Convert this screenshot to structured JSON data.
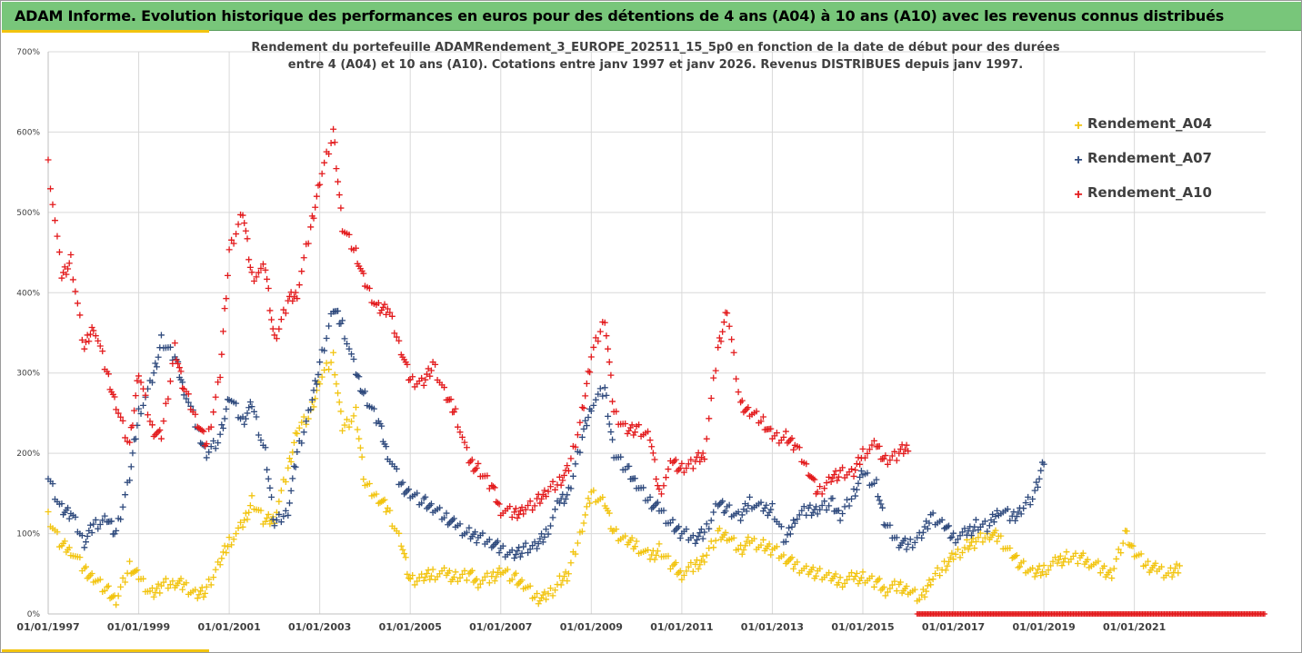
{
  "header": {
    "title": "ADAM Informe. Evolution historique des performances en euros pour des détentions de 4 ans (A04) à 10 ans (A10) avec les revenus connus distribués"
  },
  "colors": {
    "header_bg": "#78c67a",
    "accent": "#f2c40f",
    "a04": "#f2c40f",
    "a07": "#2f4a7d",
    "a10": "#e31a1c",
    "grid": "#d9d9d9"
  },
  "chart_data": {
    "type": "scatter",
    "subtitle_lines": [
      "Rendement du portefeuille ADAMRendement_3_EUROPE_202511_15_5p0  en fonction de la date de début pour des durées",
      "entre 4 (A04) et 10 ans (A10). Cotations entre janv 1997 et janv 2026. Revenus DISTRIBUES depuis janv 1997."
    ],
    "ylim": [
      0,
      700
    ],
    "y_ticks": [
      "0%",
      "100%",
      "200%",
      "300%",
      "400%",
      "500%",
      "600%",
      "700%"
    ],
    "x_range": [
      1997.0,
      2023.9
    ],
    "x_tick_labels": [
      "01/01/1997",
      "01/01/1999",
      "01/01/2001",
      "01/01/2003",
      "01/01/2005",
      "01/01/2007",
      "01/01/2009",
      "01/01/2011",
      "01/01/2013",
      "01/01/2015",
      "01/01/2017",
      "01/01/2019",
      "01/01/2021"
    ],
    "x_tick_years": [
      1997,
      1999,
      2001,
      2003,
      2005,
      2007,
      2009,
      2011,
      2013,
      2015,
      2017,
      2019,
      2021
    ],
    "legend_position": "top-right",
    "series": [
      {
        "name": "Rendement_A04",
        "color": "#f2c40f",
        "x": [
          1997.0,
          1997.3,
          1997.5,
          1997.8,
          1998.0,
          1998.3,
          1998.5,
          1998.8,
          1999.0,
          1999.3,
          1999.5,
          1999.8,
          2000.0,
          2000.3,
          2000.5,
          2000.8,
          2001.0,
          2001.3,
          2001.5,
          2001.8,
          2002.0,
          2002.3,
          2002.5,
          2002.8,
          2003.0,
          2003.3,
          2003.5,
          2003.8,
          2004.0,
          2004.3,
          2004.5,
          2004.8,
          2005.0,
          2005.3,
          2005.5,
          2005.8,
          2006.0,
          2006.3,
          2006.5,
          2006.8,
          2007.0,
          2007.3,
          2007.5,
          2007.8,
          2008.0,
          2008.3,
          2008.5,
          2008.8,
          2009.0,
          2009.3,
          2009.5,
          2009.8,
          2010.0,
          2010.3,
          2010.5,
          2010.8,
          2011.0,
          2011.3,
          2011.5,
          2011.8,
          2012.0,
          2012.3,
          2012.5,
          2012.8,
          2013.0,
          2013.3,
          2013.5,
          2013.8,
          2014.0,
          2014.3,
          2014.5,
          2014.8,
          2015.0,
          2015.3,
          2015.5,
          2015.8,
          2016.0,
          2016.3,
          2016.5,
          2016.8,
          2017.0,
          2017.3,
          2017.5,
          2017.8,
          2018.0,
          2018.3,
          2018.5,
          2018.8,
          2019.0,
          2019.3,
          2019.5,
          2019.8,
          2020.0,
          2020.3,
          2020.5,
          2020.8,
          2021.0,
          2021.3,
          2021.5,
          2021.8,
          2022.0
        ],
        "values": [
          120,
          85,
          80,
          55,
          45,
          30,
          15,
          60,
          45,
          25,
          35,
          40,
          35,
          25,
          30,
          65,
          90,
          110,
          140,
          115,
          120,
          180,
          230,
          250,
          290,
          320,
          230,
          250,
          160,
          145,
          130,
          90,
          40,
          45,
          50,
          50,
          45,
          50,
          40,
          45,
          55,
          45,
          35,
          20,
          20,
          40,
          50,
          110,
          150,
          140,
          100,
          90,
          85,
          70,
          80,
          60,
          50,
          60,
          70,
          100,
          95,
          80,
          90,
          85,
          80,
          70,
          60,
          55,
          50,
          45,
          40,
          45,
          45,
          40,
          30,
          35,
          30,
          20,
          40,
          60,
          70,
          85,
          90,
          100,
          95,
          75,
          60,
          50,
          55,
          65,
          70,
          70,
          65,
          55,
          50,
          100,
          75,
          60,
          55,
          50,
          60
        ]
      },
      {
        "name": "Rendement_A07",
        "color": "#2f4a7d",
        "x": [
          1997.0,
          1997.3,
          1997.5,
          1997.8,
          1998.0,
          1998.3,
          1998.5,
          1998.8,
          1999.0,
          1999.3,
          1999.5,
          1999.8,
          2000.0,
          2000.3,
          2000.5,
          2000.8,
          2001.0,
          2001.3,
          2001.5,
          2001.8,
          2002.0,
          2002.3,
          2002.5,
          2002.8,
          2003.0,
          2003.3,
          2003.5,
          2003.8,
          2004.0,
          2004.3,
          2004.5,
          2004.8,
          2005.0,
          2005.3,
          2005.5,
          2005.8,
          2006.0,
          2006.3,
          2006.5,
          2006.8,
          2007.0,
          2007.3,
          2007.5,
          2007.8,
          2008.0,
          2008.3,
          2008.5,
          2008.8,
          2009.0,
          2009.3,
          2009.5,
          2009.8,
          2010.0,
          2010.3,
          2010.5,
          2010.8,
          2011.0,
          2011.3,
          2011.5,
          2011.8,
          2012.0,
          2012.3,
          2012.5,
          2012.8,
          2013.0,
          2013.3,
          2013.5,
          2013.8,
          2014.0,
          2014.3,
          2014.5,
          2014.8,
          2015.0,
          2015.3,
          2015.5,
          2015.8,
          2016.0,
          2016.3,
          2016.5,
          2016.8,
          2017.0,
          2017.3,
          2017.5,
          2017.8,
          2018.0,
          2018.3,
          2018.5,
          2018.8,
          2019.0
        ],
        "values": [
          170,
          130,
          125,
          90,
          110,
          120,
          100,
          170,
          250,
          290,
          340,
          320,
          280,
          230,
          200,
          220,
          270,
          240,
          260,
          200,
          110,
          130,
          200,
          260,
          310,
          380,
          360,
          300,
          270,
          240,
          200,
          160,
          150,
          140,
          130,
          120,
          110,
          100,
          95,
          90,
          80,
          75,
          80,
          85,
          100,
          140,
          150,
          220,
          260,
          280,
          200,
          180,
          160,
          140,
          130,
          110,
          100,
          95,
          100,
          140,
          130,
          120,
          140,
          130,
          130,
          90,
          120,
          130,
          130,
          140,
          120,
          150,
          175,
          160,
          110,
          90,
          85,
          100,
          120,
          110,
          95,
          100,
          110,
          110,
          130,
          120,
          130,
          150,
          190
        ]
      },
      {
        "name": "Rendement_A10",
        "color": "#e31a1c",
        "x": [
          1997.0,
          1997.3,
          1997.5,
          1997.8,
          1998.0,
          1998.3,
          1998.5,
          1998.8,
          1999.0,
          1999.3,
          1999.5,
          1999.8,
          2000.0,
          2000.3,
          2000.5,
          2000.8,
          2001.0,
          2001.3,
          2001.5,
          2001.8,
          2002.0,
          2002.3,
          2002.5,
          2002.8,
          2003.0,
          2003.3,
          2003.5,
          2003.8,
          2004.0,
          2004.3,
          2004.5,
          2004.8,
          2005.0,
          2005.3,
          2005.5,
          2005.8,
          2006.0,
          2006.3,
          2006.5,
          2006.8,
          2007.0,
          2007.3,
          2007.5,
          2007.8,
          2008.0,
          2008.3,
          2008.5,
          2008.8,
          2009.0,
          2009.3,
          2009.5,
          2009.8,
          2010.0,
          2010.3,
          2010.5,
          2010.8,
          2011.0,
          2011.3,
          2011.5,
          2011.8,
          2012.0,
          2012.3,
          2012.5,
          2012.8,
          2013.0,
          2013.3,
          2013.5,
          2013.8,
          2014.0,
          2014.3,
          2014.5,
          2014.8,
          2015.0,
          2015.3,
          2015.5,
          2015.8,
          2016.0
        ],
        "values": [
          560,
          420,
          440,
          330,
          360,
          300,
          260,
          210,
          300,
          230,
          220,
          330,
          280,
          240,
          210,
          300,
          450,
          500,
          420,
          430,
          340,
          390,
          400,
          480,
          540,
          600,
          480,
          450,
          410,
          380,
          380,
          330,
          290,
          290,
          310,
          270,
          250,
          190,
          180,
          160,
          130,
          125,
          130,
          140,
          150,
          165,
          180,
          250,
          320,
          370,
          250,
          230,
          230,
          220,
          150,
          190,
          180,
          190,
          200,
          330,
          380,
          260,
          250,
          240,
          220,
          220,
          210,
          180,
          150,
          170,
          175,
          175,
          200,
          210,
          190,
          200,
          210
        ]
      }
    ],
    "zero_band": {
      "series": "Rendement_A10",
      "x_start": 2016.2,
      "x_end": 2023.9,
      "value": 0
    }
  }
}
